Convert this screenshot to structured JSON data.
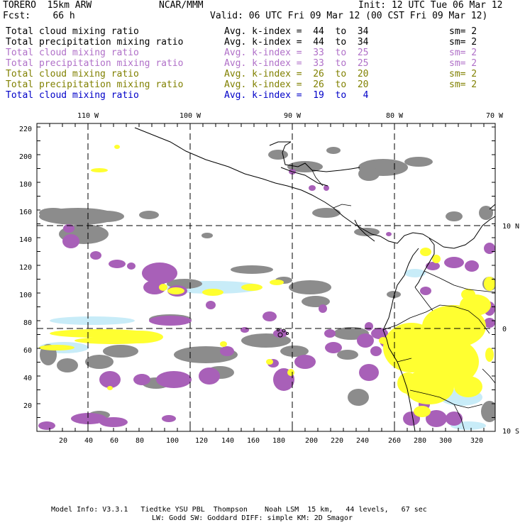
{
  "header": {
    "model": "TORERO  15km ARW",
    "org": "NCAR/MMM",
    "init": "Init: 12 UTC Tue 06 Mar 12",
    "fcst": "Fcst:    66 h",
    "valid": "Valid: 06 UTC Fri 09 Mar 12 (00 CST Fri 09 Mar 12)"
  },
  "legend": [
    {
      "field": "Total cloud mixing ratio",
      "kindex": "Avg. k-index =  44  to  34",
      "sm": "sm= 2",
      "color": "#000000"
    },
    {
      "field": "Total precipitation mixing ratio",
      "kindex": "Avg. k-index =  44  to  34",
      "sm": "sm= 2",
      "color": "#000000"
    },
    {
      "field": "Total cloud mixing ratio",
      "kindex": "Avg. k-index =  33  to  25",
      "sm": "sm= 2",
      "color": "#b070c8"
    },
    {
      "field": "Total precipitation mixing ratio",
      "kindex": "Avg. k-index =  33  to  25",
      "sm": "sm= 2",
      "color": "#b070c8"
    },
    {
      "field": "Total cloud mixing ratio",
      "kindex": "Avg. k-index =  26  to  20",
      "sm": "sm= 2",
      "color": "#808000"
    },
    {
      "field": "Total precipitation mixing ratio",
      "kindex": "Avg. k-index =  26  to  20",
      "sm": "sm= 2",
      "color": "#808000"
    },
    {
      "field": "Total cloud mixing ratio",
      "kindex": "Avg. k-index =  19  to   4",
      "sm": "",
      "color": "#0000c8"
    }
  ],
  "map": {
    "lon_labels": [
      "110 W",
      "100 W",
      "90 W",
      "80 W",
      "70 W"
    ],
    "lat_labels": [
      "10 N",
      "0",
      "10 S"
    ],
    "x_ticks": [
      "20",
      "40",
      "60",
      "80",
      "100",
      "120",
      "140",
      "160",
      "180",
      "200",
      "220",
      "240",
      "260",
      "280",
      "300",
      "320"
    ],
    "y_ticks": [
      "220",
      "200",
      "180",
      "160",
      "140",
      "120",
      "100",
      "80",
      "60",
      "40",
      "20"
    ],
    "colors": {
      "gray": "#8c8c8c",
      "purple": "#a860b8",
      "yellow": "#ffff30",
      "lightblue": "#c8ecf8"
    }
  },
  "footer": {
    "line1": "Model Info: V3.3.1   Tiedtke YSU PBL  Thompson    Noah LSM  15 km,   44 levels,   67 sec",
    "line2": "LW: Godd SW: Goddard DIFF: simple KM: 2D Smagor"
  }
}
